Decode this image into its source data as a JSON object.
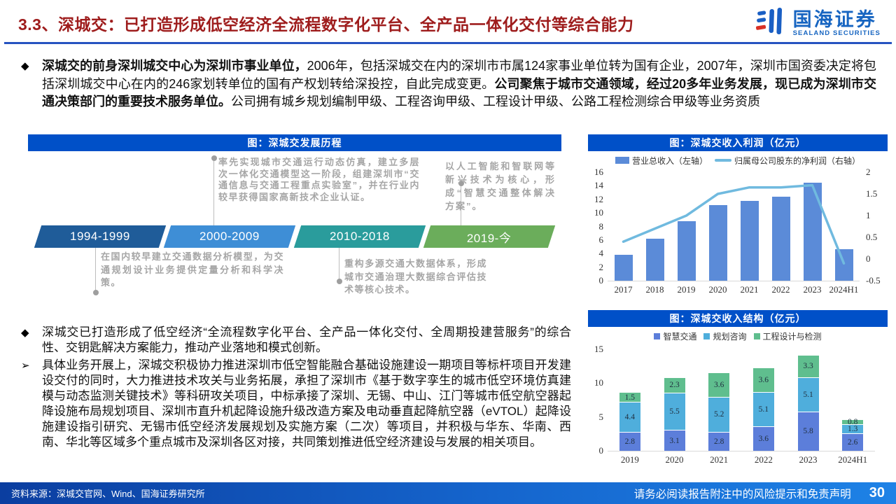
{
  "header": {
    "title": "3.3、深城交：已打造形成低空经济全流程数字化平台、全产品一体化交付等综合能力",
    "logo_cn": "国海证券",
    "logo_en": "SEALAND SECURITIES"
  },
  "intro": {
    "marker": "◆",
    "bold_lead": "深城交的前身深圳城交中心为深圳市事业单位，",
    "text_a": "2006年，包括深城交在内的深圳市市属124家事业单位转为国有企业，2007年，深圳市国资委决定将包括深圳城交中心在内的246家划转单位的国有产权划转给深投控，自此完成变更。",
    "bold_mid": "公司聚焦于城市交通领域，经过20多年业务发展，现已成为深圳市交通决策部门的重要技术服务单位。",
    "text_b": "公司拥有城乡规划编制甲级、工程咨询甲级、工程设计甲级、公路工程检测综合甲级等业务资质"
  },
  "timeline": {
    "title": "图：深城交发展历程",
    "periods": [
      {
        "label": "1994-1999",
        "color": "#1f5c99"
      },
      {
        "label": "2000-2009",
        "color": "#3e8ed6"
      },
      {
        "label": "2010-2018",
        "color": "#2a9c9c"
      },
      {
        "label": "2019-今",
        "color": "#6bad5b"
      }
    ],
    "notes": [
      {
        "period": "1994-1999",
        "text": "在国内较早建立交通数据分析模型，为交通规划设计业务提供定量分析和科学决策。"
      },
      {
        "period": "2000-2009",
        "text": "率先实现城市交通运行动态仿真，建立多层次一体化交通模型这一阶段，组建深圳市“交通信息与交通工程重点实验室”，并在行业内较早获得国家高新技术企业认证。"
      },
      {
        "period": "2010-2018",
        "text": "重构多源交通大数据体系，形成城市交通治理大数据综合评估技术等核心技术。"
      },
      {
        "period": "2019-今",
        "text": "以人工智能和智联网等新兴技术为核心，形成“智慧交通整体解决方案”。"
      }
    ]
  },
  "body_bullets": [
    {
      "marker": "◆",
      "text": "深城交已打造形成了低空经济“全流程数字化平台、全产品一体化交付、全周期投建营服务”的综合性、交钥匙解决方案能力，推动产业落地和模式创新。"
    },
    {
      "marker": "➢",
      "text": "具体业务开展上，深城交积极协力推进深圳市低空智能融合基础设施建设一期项目等标杆项目开发建设交付的同时，大力推进技术攻关与业务拓展，承担了深圳市《基于数字孪生的城市低空环境仿真建模与动态监测关键技术》等科研攻关项目，中标承接了深圳、无锡、中山、江门等城市低空航空器起降设施布局规划项目、深圳市直升机起降设施升级改造方案及电动垂直起降航空器（eVTOL）起降设施建设指引研究、无锡市低空经济发展规划及实施方案（二次）等项目，并积极与华东、华南、西南、华北等区域多个重点城市及深圳各区对接，共同策划推进低空经济建设与发展的相关项目。"
    }
  ],
  "chart_data": [
    {
      "id": "revenue_profit",
      "type": "bar+line",
      "title": "图：深城交收入利润（亿元）",
      "categories": [
        "2017",
        "2018",
        "2019",
        "2020",
        "2021",
        "2022",
        "2023",
        "2024H1"
      ],
      "series": [
        {
          "name": "营业总收入（左轴）",
          "type": "bar",
          "axis": "left",
          "color": "#5b8bd8",
          "values": [
            3.8,
            6.2,
            8.8,
            11.1,
            11.8,
            12.4,
            14.5,
            4.6
          ]
        },
        {
          "name": "归属母公司股东的净利润（右轴）",
          "type": "line",
          "axis": "right",
          "color": "#70badf",
          "values": [
            0.4,
            0.7,
            1.0,
            1.5,
            1.65,
            1.65,
            1.7,
            -0.1
          ]
        }
      ],
      "left_axis": {
        "min": 0,
        "max": 16,
        "step": 2
      },
      "right_axis": {
        "min": -0.5,
        "max": 2,
        "step": 0.5
      },
      "legend_position": "top",
      "grid": false
    },
    {
      "id": "revenue_structure",
      "type": "stacked-bar",
      "title": "图：深城交收入结构（亿元）",
      "categories": [
        "2019",
        "2020",
        "2021",
        "2022",
        "2023",
        "2024H1"
      ],
      "series": [
        {
          "name": "智慧交通",
          "color": "#5c7eda",
          "values": [
            2.8,
            3.1,
            2.8,
            3.6,
            5.8,
            2.6
          ]
        },
        {
          "name": "规划咨询",
          "color": "#4faedc",
          "values": [
            4.4,
            5.5,
            5.2,
            5.1,
            5.1,
            1.3
          ]
        },
        {
          "name": "工程设计与检测",
          "color": "#5fbe8e",
          "values": [
            1.5,
            2.3,
            3.6,
            3.6,
            3.3,
            0.8
          ]
        }
      ],
      "y_axis": {
        "min": 0,
        "max": 15,
        "step": 5
      },
      "data_labels": true,
      "legend_position": "top",
      "grid": false
    }
  ],
  "footer": {
    "source": "资料来源：深城交官网、Wind、国海证券研究所",
    "disclaimer": "请务必阅读报告附注中的风险提示和免责声明",
    "page": "30"
  }
}
